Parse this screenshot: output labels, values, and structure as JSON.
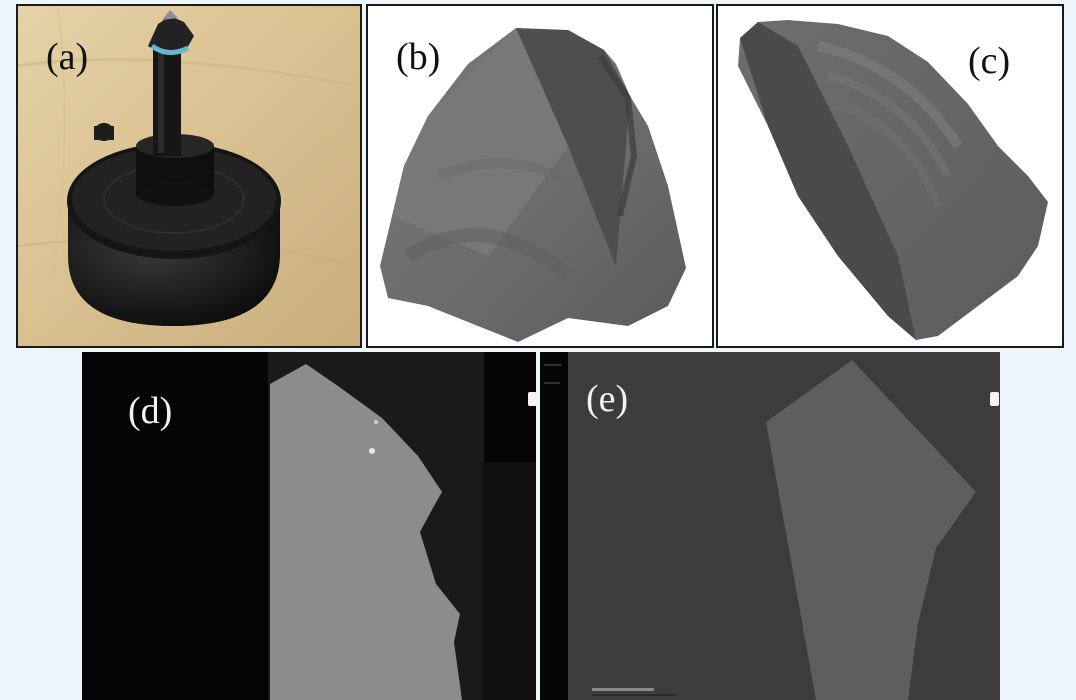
{
  "panels": {
    "a": {
      "label": "(a)",
      "photo": "black-metal-sample-holder-with-specimen"
    },
    "b": {
      "label": "(b)",
      "photo": "3d-rendered-grey-rock-fragment-front"
    },
    "c": {
      "label": "(c)",
      "photo": "3d-rendered-grey-rock-fragment-side"
    },
    "d": {
      "label": "(d)",
      "photo": "sem-backscatter-image-grey-grain-on-black"
    },
    "e": {
      "label": "(e)",
      "photo": "sem-backscatter-image-grey-polygon-on-dark-grey"
    }
  },
  "colors": {
    "background": "#eef6fc",
    "frame": "#1a1a1a",
    "sem_black": "#050505",
    "sem_grain": "#8c8c8c",
    "sem_dark": "#3c3c3c",
    "sem_polygon": "#5e5e5e"
  }
}
